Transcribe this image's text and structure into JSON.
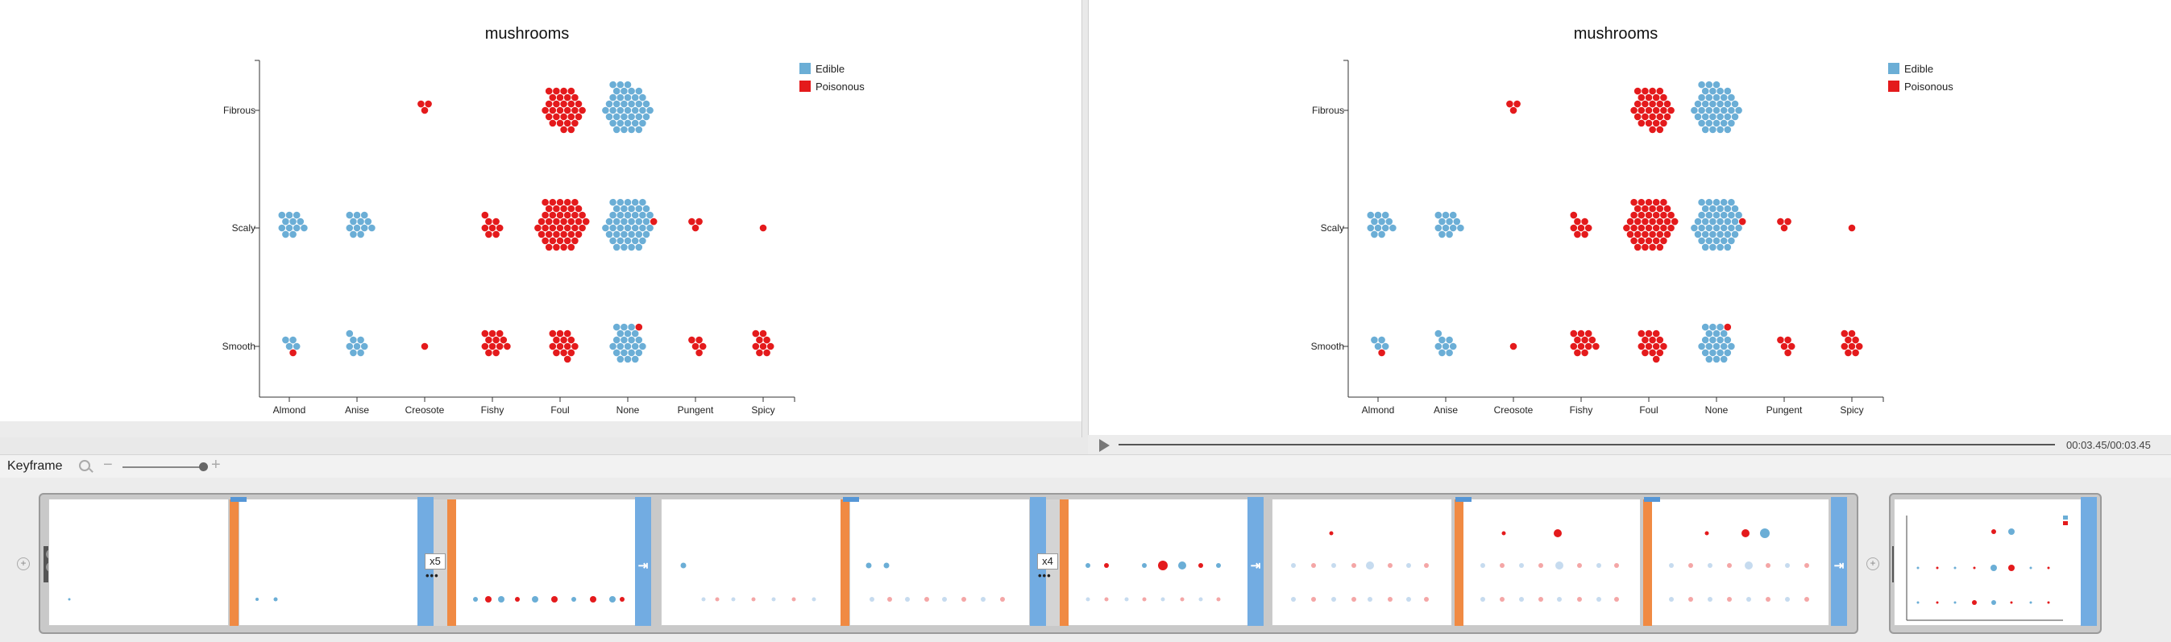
{
  "charts": {
    "left": {
      "title": "mushrooms",
      "categories": [
        "Almond",
        "Anise",
        "Creosote",
        "Fishy",
        "Foul",
        "None",
        "Pungent",
        "Spicy"
      ],
      "rows": [
        "Fibrous",
        "Scaly",
        "Smooth"
      ],
      "legend": [
        {
          "label": "Edible",
          "color": "#6baed6"
        },
        {
          "label": "Poisonous",
          "color": "#e41a1c"
        }
      ]
    },
    "right": {
      "title": "mushrooms",
      "categories": [
        "Almond",
        "Anise",
        "Creosote",
        "Fishy",
        "Foul",
        "None",
        "Pungent",
        "Spicy"
      ],
      "rows": [
        "Fibrous",
        "Scaly",
        "Smooth"
      ],
      "legend": [
        {
          "label": "Edible",
          "color": "#6baed6"
        },
        {
          "label": "Poisonous",
          "color": "#e41a1c"
        }
      ]
    }
  },
  "chart_data": {
    "type": "scatter",
    "subtype": "beeswarm",
    "title": "mushrooms",
    "x_categories": [
      "Almond",
      "Anise",
      "Creosote",
      "Fishy",
      "Foul",
      "None",
      "Pungent",
      "Spicy"
    ],
    "y_categories": [
      "Fibrous",
      "Scaly",
      "Smooth"
    ],
    "series": [
      {
        "name": "Edible",
        "color": "#6baed6",
        "counts": {
          "Fibrous": [
            0,
            0,
            0,
            0,
            0,
            40,
            0,
            0
          ],
          "Scaly": [
            12,
            12,
            0,
            0,
            0,
            44,
            0,
            0
          ],
          "Smooth": [
            4,
            8,
            0,
            0,
            0,
            22,
            0,
            0
          ]
        }
      },
      {
        "name": "Poisonous",
        "color": "#e41a1c",
        "counts": {
          "Fibrous": [
            0,
            0,
            3,
            0,
            30,
            0,
            0,
            0
          ],
          "Scaly": [
            0,
            0,
            0,
            8,
            45,
            1,
            3,
            1
          ],
          "Smooth": [
            1,
            0,
            1,
            12,
            14,
            1,
            5,
            9
          ]
        }
      }
    ],
    "legend_position": "top-right",
    "grid": false
  },
  "player": {
    "time": "00:03.45/00:03.45"
  },
  "keyframe_bar": {
    "label": "Keyframe"
  },
  "timeline": {
    "repeat_badges": [
      "x5",
      "x4"
    ],
    "repeat_dots": "•••",
    "end_arrow": "⇥",
    "add_symbol": "+"
  }
}
